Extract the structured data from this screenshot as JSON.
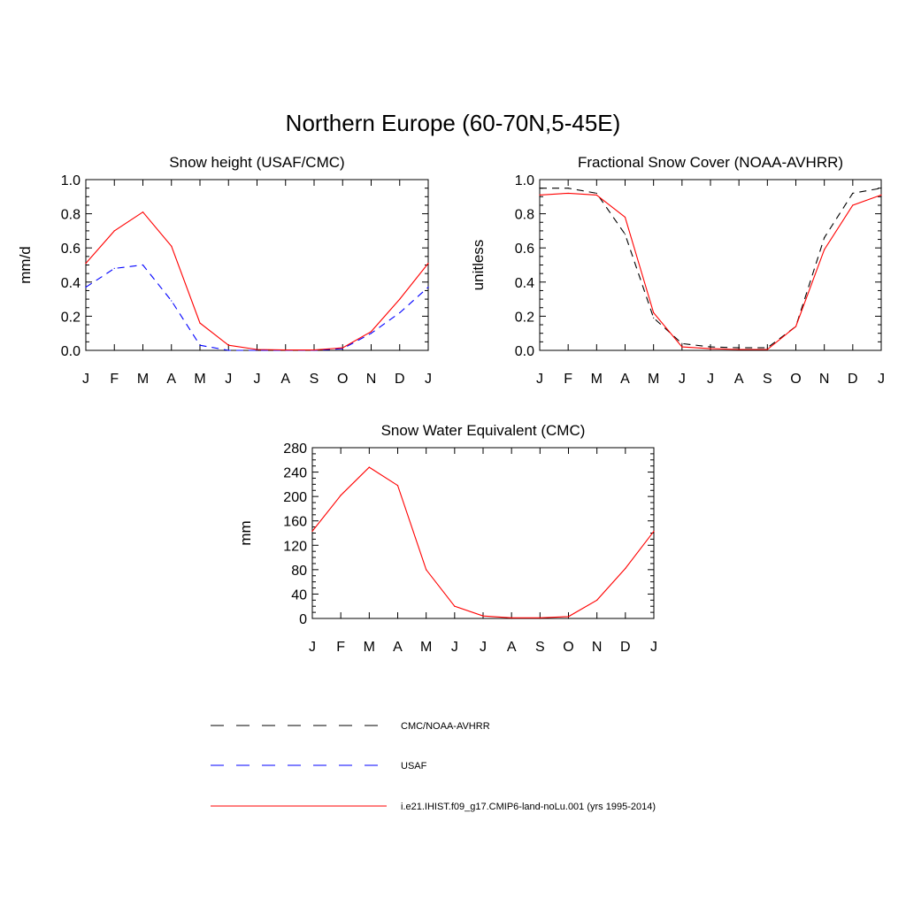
{
  "figure_title": "Northern Europe (60-70N,5-45E)",
  "chart_data": [
    {
      "type": "line",
      "title": "Snow height (USAF/CMC)",
      "xlabel": "",
      "ylabel": "mm/d",
      "ylim": [
        0,
        1.0
      ],
      "yticks": [
        "0.0",
        "0.2",
        "0.4",
        "0.6",
        "0.8",
        "1.0"
      ],
      "categories": [
        "J",
        "F",
        "M",
        "A",
        "M",
        "J",
        "J",
        "A",
        "S",
        "O",
        "N",
        "D",
        "J"
      ],
      "series": [
        {
          "name": "CMC/NOAA-AVHRR",
          "color": "#000000",
          "dash": true,
          "values": [
            0,
            0,
            0,
            0,
            0,
            0,
            0,
            0,
            0,
            0,
            0,
            0,
            0
          ]
        },
        {
          "name": "USAF",
          "color": "#0000ff",
          "dash": true,
          "values": [
            0.37,
            0.48,
            0.5,
            0.29,
            0.03,
            0.0,
            0.0,
            0.0,
            0.0,
            0.01,
            0.1,
            0.22,
            0.37
          ]
        },
        {
          "name": "i.e21.IHIST.f09_g17.CMIP6-land-noLu.001 (yrs 1995-2014)",
          "color": "#ff0000",
          "dash": false,
          "values": [
            0.51,
            0.7,
            0.81,
            0.61,
            0.16,
            0.03,
            0.005,
            0.002,
            0.002,
            0.015,
            0.11,
            0.3,
            0.51
          ]
        }
      ]
    },
    {
      "type": "line",
      "title": "Fractional Snow Cover (NOAA-AVHRR)",
      "xlabel": "",
      "ylabel": "unitless",
      "ylim": [
        0,
        1.0
      ],
      "yticks": [
        "0.0",
        "0.2",
        "0.4",
        "0.6",
        "0.8",
        "1.0"
      ],
      "categories": [
        "J",
        "F",
        "M",
        "A",
        "M",
        "J",
        "J",
        "A",
        "S",
        "O",
        "N",
        "D",
        "J"
      ],
      "series": [
        {
          "name": "CMC/NOAA-AVHRR",
          "color": "#000000",
          "dash": true,
          "values": [
            0.95,
            0.95,
            0.92,
            0.68,
            0.19,
            0.04,
            0.02,
            0.015,
            0.015,
            0.14,
            0.66,
            0.92,
            0.95
          ]
        },
        {
          "name": "i.e21.IHIST.f09_g17.CMIP6-land-noLu.001 (yrs 1995-2014)",
          "color": "#ff0000",
          "dash": false,
          "values": [
            0.91,
            0.92,
            0.91,
            0.78,
            0.22,
            0.02,
            0.01,
            0.005,
            0.005,
            0.14,
            0.59,
            0.85,
            0.91
          ]
        }
      ]
    },
    {
      "type": "line",
      "title": "Snow Water Equivalent (CMC)",
      "xlabel": "",
      "ylabel": "mm",
      "ylim": [
        0,
        280
      ],
      "yticks": [
        "0",
        "40",
        "80",
        "120",
        "160",
        "200",
        "240",
        "280"
      ],
      "categories": [
        "J",
        "F",
        "M",
        "A",
        "M",
        "J",
        "J",
        "A",
        "S",
        "O",
        "N",
        "D",
        "J"
      ],
      "series": [
        {
          "name": "CMC/NOAA-AVHRR",
          "color": "#000000",
          "dash": true,
          "values": [
            0,
            0,
            0,
            0,
            0,
            0,
            0,
            0,
            0,
            0,
            0,
            0,
            0
          ]
        },
        {
          "name": "i.e21.IHIST.f09_g17.CMIP6-land-noLu.001 (yrs 1995-2014)",
          "color": "#ff0000",
          "dash": false,
          "values": [
            143,
            202,
            248,
            218,
            80,
            20,
            4,
            1,
            1,
            3,
            30,
            82,
            143
          ]
        }
      ]
    }
  ],
  "legend": {
    "placement": "bottom",
    "entries": [
      {
        "label": "CMC/NOAA-AVHRR",
        "color": "#000000",
        "dash": true
      },
      {
        "label": "USAF",
        "color": "#0000ff",
        "dash": true
      },
      {
        "label": "i.e21.IHIST.f09_g17.CMIP6-land-noLu.001 (yrs 1995-2014)",
        "color": "#ff0000",
        "dash": false
      }
    ]
  }
}
